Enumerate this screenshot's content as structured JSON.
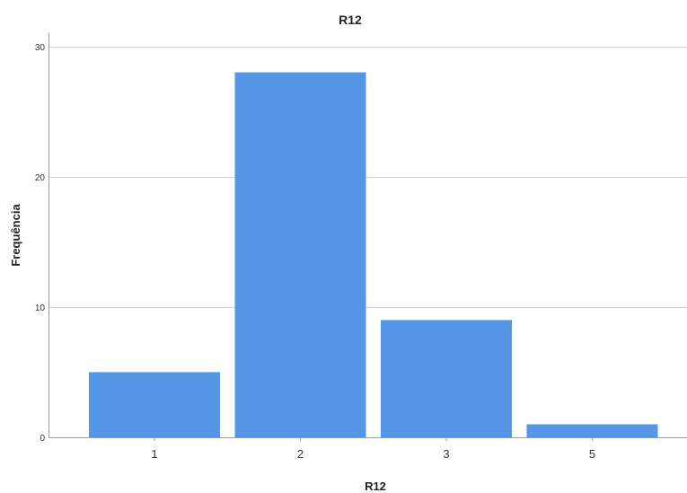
{
  "chart_data": {
    "type": "bar",
    "title": "R12",
    "xlabel": "R12",
    "ylabel": "Frequência",
    "categories": [
      "1",
      "2",
      "3",
      "5"
    ],
    "values": [
      5,
      28,
      9,
      1
    ],
    "ylim": [
      0,
      31
    ],
    "yticks": [
      "0",
      "10",
      "20",
      "30"
    ],
    "ytick_values": [
      0,
      10,
      20,
      30
    ],
    "grid": true,
    "bar_color": "#5596e6"
  }
}
